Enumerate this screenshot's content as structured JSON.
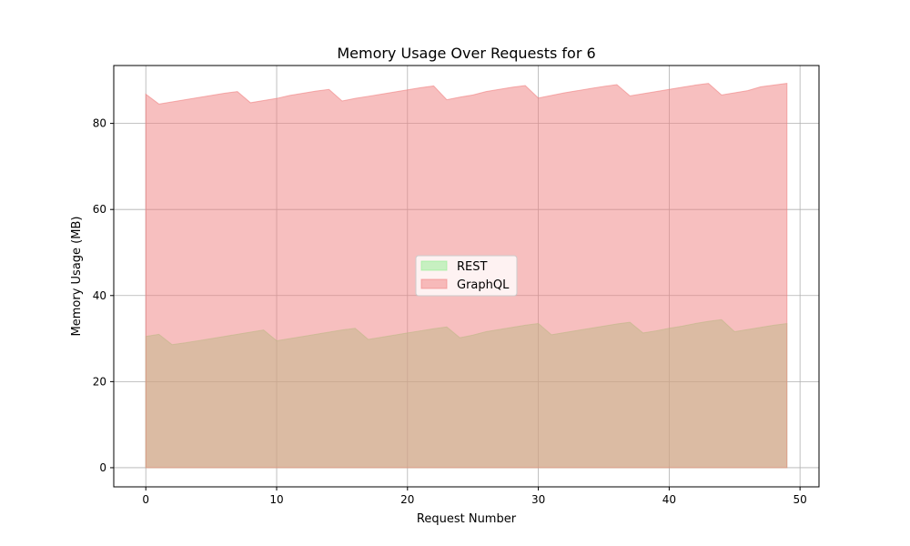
{
  "chart_data": {
    "type": "area",
    "title": "Memory Usage Over Requests for 6",
    "xlabel": "Request Number",
    "ylabel": "Memory Usage (MB)",
    "xlim": [
      -2.45,
      51.45
    ],
    "ylim": [
      -4.45,
      93.45
    ],
    "xticks": [
      0,
      10,
      20,
      30,
      40,
      50
    ],
    "yticks": [
      0,
      20,
      40,
      60,
      80
    ],
    "grid": true,
    "legend_position": "center",
    "x": [
      0,
      1,
      2,
      3,
      4,
      5,
      6,
      7,
      8,
      9,
      10,
      11,
      12,
      13,
      14,
      15,
      16,
      17,
      18,
      19,
      20,
      21,
      22,
      23,
      24,
      25,
      26,
      27,
      28,
      29,
      30,
      31,
      32,
      33,
      34,
      35,
      36,
      37,
      38,
      39,
      40,
      41,
      42,
      43,
      44,
      45,
      46,
      47,
      48,
      49
    ],
    "series": [
      {
        "name": "REST",
        "color": "#90ee90",
        "values": [
          30.5,
          31.0,
          28.6,
          29.0,
          29.5,
          30.0,
          30.5,
          31.0,
          31.5,
          32.0,
          29.5,
          30.0,
          30.5,
          31.0,
          31.5,
          32.0,
          32.4,
          29.8,
          30.3,
          30.8,
          31.3,
          31.8,
          32.3,
          32.7,
          30.2,
          30.8,
          31.6,
          32.1,
          32.6,
          33.1,
          33.5,
          30.9,
          31.4,
          31.9,
          32.4,
          32.9,
          33.4,
          33.8,
          31.3,
          31.8,
          32.4,
          32.9,
          33.5,
          34.0,
          34.4,
          31.6,
          32.1,
          32.6,
          33.1,
          33.5
        ]
      },
      {
        "name": "GraphQL",
        "color": "#f08080",
        "values": [
          86.8,
          84.5,
          85.0,
          85.5,
          86.0,
          86.5,
          87.0,
          87.4,
          84.8,
          85.3,
          85.8,
          86.5,
          87.0,
          87.5,
          87.9,
          85.2,
          85.8,
          86.3,
          86.8,
          87.3,
          87.8,
          88.3,
          88.7,
          85.5,
          86.1,
          86.6,
          87.4,
          87.9,
          88.4,
          88.8,
          85.9,
          86.5,
          87.1,
          87.6,
          88.1,
          88.6,
          89.0,
          86.4,
          86.9,
          87.4,
          87.9,
          88.4,
          88.9,
          89.3,
          86.6,
          87.1,
          87.6,
          88.5,
          88.9,
          89.3
        ]
      }
    ]
  }
}
